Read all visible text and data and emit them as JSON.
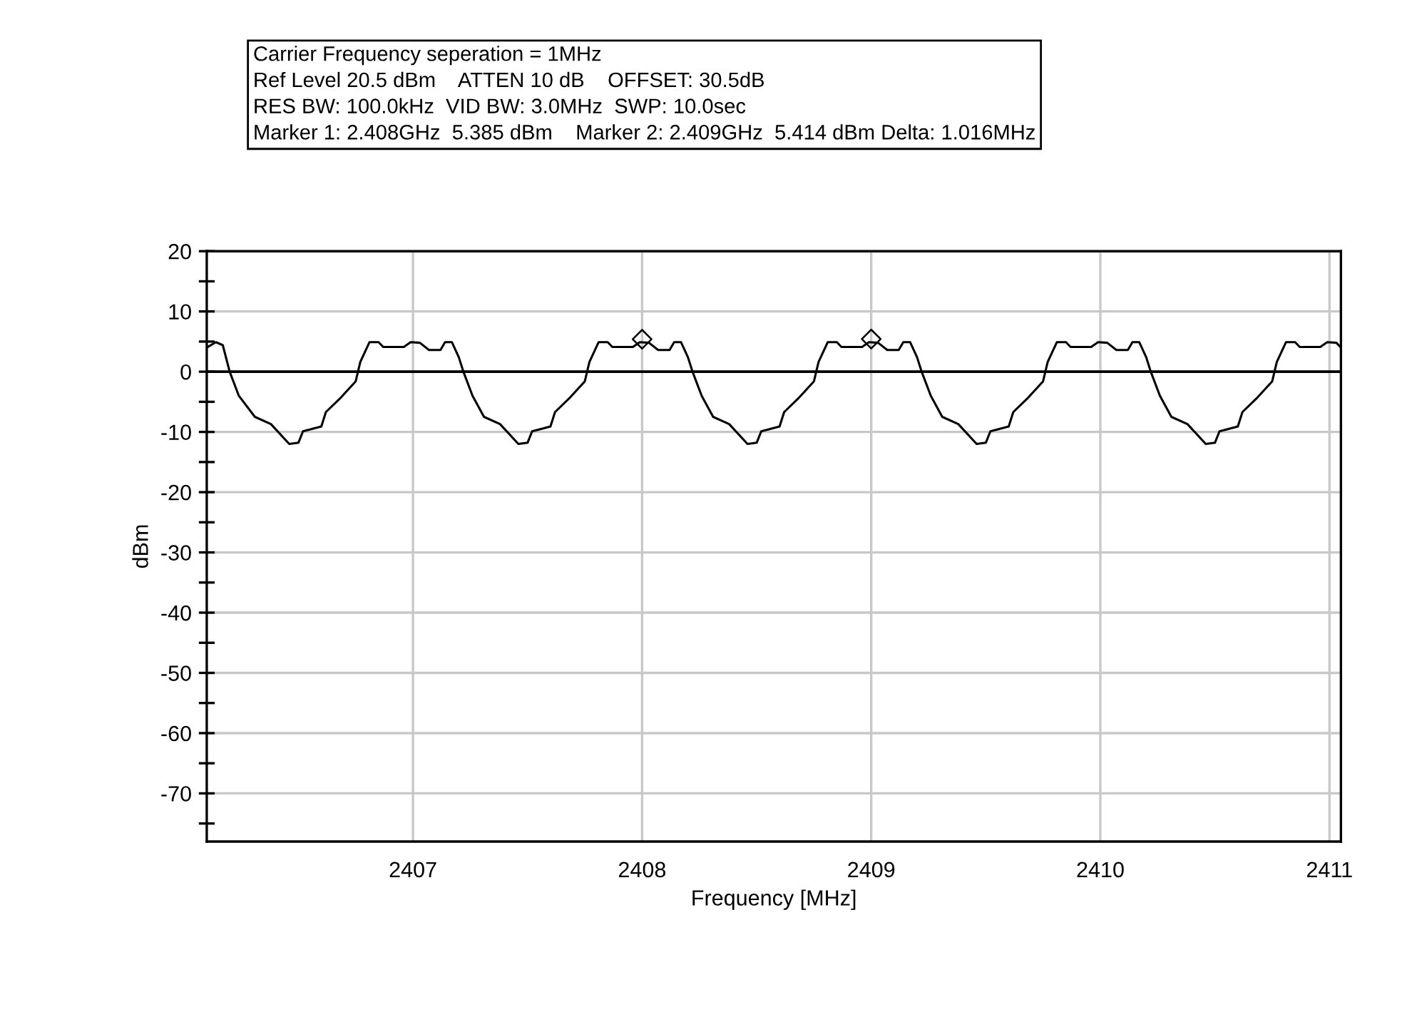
{
  "chart_data": {
    "type": "line",
    "xlabel": "Frequency [MHz]",
    "ylabel": "dBm",
    "annotations": [
      "Carrier Frequency seperation = 1MHz",
      "Ref Level 20.5 dBm    ATTEN 10 dB    OFFSET: 30.5dB",
      "RES BW: 100.0kHz  VID BW: 3.0MHz  SWP: 10.0sec",
      "Marker 1: 2.408GHz  5.385 dBm    Marker 2: 2.409GHz  5.414 dBm Delta: 1.016MHz"
    ],
    "series": [
      {
        "color": "#000000",
        "marker": "none",
        "x": [
          2406.1,
          2406.14,
          2406.17,
          2406.2,
          2406.24,
          2406.31,
          2406.38,
          2406.46,
          2406.5,
          2406.52,
          2406.6,
          2406.62,
          2406.68,
          2406.75,
          2406.77,
          2406.81,
          2406.85,
          2406.87,
          2406.96,
          2406.99,
          2407.03,
          2407.07,
          2407.12,
          2407.14,
          2407.17,
          2407.2,
          2407.22,
          2407.26,
          2407.31,
          2407.38,
          2407.46,
          2407.5,
          2407.52,
          2407.6,
          2407.62,
          2407.68,
          2407.75,
          2407.77,
          2407.81,
          2407.85,
          2407.87,
          2407.96,
          2407.99,
          2408.03,
          2408.07,
          2408.12,
          2408.14,
          2408.17,
          2408.2,
          2408.22,
          2408.26,
          2408.31,
          2408.38,
          2408.46,
          2408.5,
          2408.52,
          2408.6,
          2408.62,
          2408.68,
          2408.75,
          2408.77,
          2408.81,
          2408.85,
          2408.87,
          2408.96,
          2408.99,
          2409.03,
          2409.07,
          2409.12,
          2409.14,
          2409.17,
          2409.2,
          2409.22,
          2409.26,
          2409.31,
          2409.38,
          2409.46,
          2409.5,
          2409.52,
          2409.6,
          2409.62,
          2409.68,
          2409.75,
          2409.77,
          2409.81,
          2409.85,
          2409.87,
          2409.96,
          2409.99,
          2410.03,
          2410.07,
          2410.12,
          2410.14,
          2410.17,
          2410.2,
          2410.22,
          2410.26,
          2410.31,
          2410.38,
          2410.46,
          2410.5,
          2410.52,
          2410.6,
          2410.62,
          2410.68,
          2410.75,
          2410.77,
          2410.81,
          2410.85,
          2410.87,
          2410.96,
          2410.99,
          2411.03,
          2411.05
        ],
        "values": [
          4.0,
          4.9,
          4.4,
          0,
          -4,
          -7.5,
          -8.7,
          -12.0,
          -11.8,
          -9.9,
          -9.1,
          -6.7,
          -4.5,
          -1.6,
          1.6,
          4.9,
          4.9,
          4.1,
          4.1,
          4.9,
          4.8,
          3.6,
          3.6,
          4.9,
          4.9,
          2.4,
          0,
          -4,
          -7.5,
          -8.7,
          -12.0,
          -11.8,
          -9.9,
          -9.1,
          -6.7,
          -4.5,
          -1.6,
          1.6,
          4.9,
          4.9,
          4.1,
          4.1,
          4.9,
          4.8,
          3.6,
          3.6,
          4.9,
          4.9,
          2.4,
          0,
          -4,
          -7.5,
          -8.7,
          -12.0,
          -11.8,
          -9.9,
          -9.1,
          -6.7,
          -4.5,
          -1.6,
          1.6,
          4.9,
          4.9,
          4.1,
          4.1,
          4.9,
          4.8,
          3.6,
          3.6,
          4.9,
          4.9,
          2.4,
          0,
          -4,
          -7.5,
          -8.7,
          -12.0,
          -11.8,
          -9.9,
          -9.1,
          -6.7,
          -4.5,
          -1.6,
          1.6,
          4.9,
          4.9,
          4.1,
          4.1,
          4.9,
          4.8,
          3.6,
          3.6,
          4.9,
          4.9,
          2.4,
          0,
          -4,
          -7.5,
          -8.7,
          -12.0,
          -11.8,
          -9.9,
          -9.1,
          -6.7,
          -4.5,
          -1.6,
          1.6,
          4.9,
          4.9,
          4.1,
          4.1,
          4.9,
          4.8,
          4.0
        ]
      },
      {
        "color": "#000000",
        "type": "scatter",
        "marker": "diamond",
        "x": [
          2408,
          2409
        ],
        "values": [
          5.385,
          5.414
        ]
      }
    ],
    "xlim": [
      2406.1,
      2411.05
    ],
    "xticks": [
      2407,
      2408,
      2409,
      2410,
      2411
    ],
    "ylim": [
      -78,
      20
    ],
    "yticks": [
      {
        "value": -75,
        "label": null
      },
      -70,
      {
        "value": -65,
        "label": null
      },
      -60,
      {
        "value": -55,
        "label": null
      },
      -50,
      {
        "value": -45,
        "label": null
      },
      -40,
      {
        "value": -35,
        "label": null
      },
      -30,
      {
        "value": -25,
        "label": null
      },
      -20,
      {
        "value": -15,
        "label": null
      },
      -10,
      {
        "value": -5,
        "label": null
      },
      0,
      {
        "value": 5,
        "label": null
      },
      10,
      {
        "value": 15,
        "label": null
      },
      20
    ],
    "ref_lines": [
      {
        "axis": "y",
        "value": 0,
        "color": "#000000"
      }
    ],
    "grid": true,
    "legend": false
  }
}
